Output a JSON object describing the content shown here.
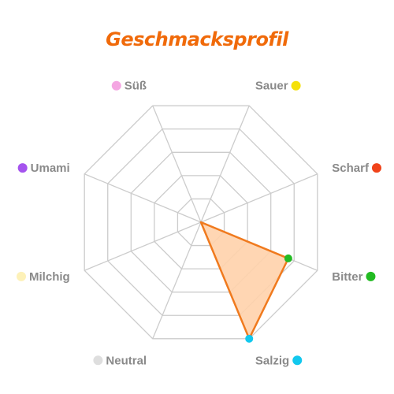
{
  "chart_data": {
    "type": "radar",
    "title": "Geschmacksprofil",
    "categories": [
      "Süß",
      "Sauer",
      "Scharf",
      "Bitter",
      "Salzig",
      "Neutral",
      "Milchig",
      "Umami"
    ],
    "category_colors": [
      "#f4a6e2",
      "#f5e10a",
      "#f0431a",
      "#22bb22",
      "#12c8ee",
      "#dedede",
      "#fdf1b8",
      "#a554ee"
    ],
    "values": [
      0,
      0,
      0,
      0.75,
      1.0,
      0,
      0,
      0
    ],
    "rlim": [
      0,
      1
    ],
    "rings": 5,
    "series_color": "#f07a1e",
    "series_fill": "#ffd2ab",
    "grid_color": "#cccccc"
  }
}
